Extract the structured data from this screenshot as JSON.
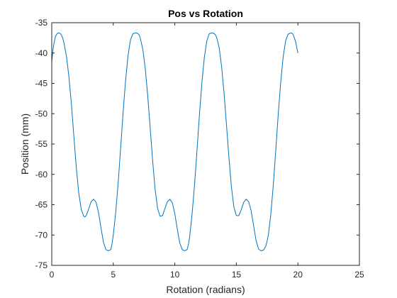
{
  "chart_data": {
    "type": "line",
    "title": "Pos vs Rotation",
    "xlabel": "Rotation (radians)",
    "ylabel": "Position (mm)",
    "xlim": [
      0,
      25
    ],
    "ylim": [
      -75,
      -35
    ],
    "xticks": [
      0,
      5,
      10,
      15,
      20,
      25
    ],
    "yticks": [
      -35,
      -40,
      -45,
      -50,
      -55,
      -60,
      -65,
      -70,
      -75
    ],
    "grid": false,
    "box": true,
    "line_color": "#0072BD",
    "axis_color": "#262626",
    "series": [
      {
        "x": [
          0,
          0.1,
          0.2,
          0.3,
          0.4,
          0.5,
          0.6,
          0.7,
          0.8,
          0.9,
          1.0,
          1.2,
          1.4,
          1.6,
          1.8,
          2.0,
          2.2,
          2.4,
          2.6,
          2.7,
          2.8,
          3.0,
          3.2,
          3.4,
          3.6,
          3.8,
          4.0,
          4.2,
          4.4,
          4.6,
          4.8,
          4.9,
          5.0,
          5.2,
          5.4,
          5.6,
          5.8,
          6.0,
          6.2,
          6.4,
          6.6,
          6.8,
          6.9,
          7.0,
          7.1,
          7.2,
          7.4,
          7.6,
          7.8,
          8.0,
          8.2,
          8.4,
          8.6,
          8.8,
          9.0,
          9.2,
          9.4,
          9.6,
          9.8,
          10.0,
          10.2,
          10.4,
          10.6,
          10.8,
          11.0,
          11.1,
          11.2,
          11.4,
          11.6,
          11.8,
          12.0,
          12.2,
          12.4,
          12.6,
          12.8,
          13.0,
          13.1,
          13.2,
          13.3,
          13.4,
          13.6,
          13.8,
          14.0,
          14.2,
          14.4,
          14.6,
          14.8,
          15.0,
          15.2,
          15.4,
          15.6,
          15.8,
          16.0,
          16.2,
          16.4,
          16.6,
          16.8,
          17.0,
          17.2,
          17.4,
          17.5,
          17.6,
          17.8,
          18.0,
          18.2,
          18.4,
          18.6,
          18.8,
          19.0,
          19.2,
          19.4,
          19.5,
          19.6,
          19.8,
          20.0
        ],
        "y": [
          -41.5,
          -39.5,
          -38.2,
          -37.3,
          -36.9,
          -36.7,
          -36.7,
          -36.8,
          -37.1,
          -37.6,
          -38.4,
          -40.6,
          -44.0,
          -48.5,
          -53.8,
          -59.0,
          -63.2,
          -65.8,
          -66.9,
          -67.0,
          -66.8,
          -65.7,
          -64.5,
          -64.1,
          -64.6,
          -66.3,
          -68.8,
          -71.2,
          -72.4,
          -72.6,
          -72.4,
          -71.4,
          -70.0,
          -66.2,
          -61.3,
          -55.6,
          -49.7,
          -44.5,
          -40.4,
          -37.8,
          -36.8,
          -36.7,
          -36.7,
          -36.8,
          -37.0,
          -37.6,
          -39.4,
          -42.6,
          -47.1,
          -52.4,
          -57.8,
          -62.5,
          -65.6,
          -66.9,
          -66.8,
          -65.6,
          -64.5,
          -64.1,
          -64.7,
          -66.5,
          -69.0,
          -71.3,
          -72.4,
          -72.6,
          -72.4,
          -71.6,
          -70.4,
          -66.6,
          -61.8,
          -56.1,
          -50.2,
          -44.9,
          -40.7,
          -38.0,
          -36.8,
          -36.7,
          -36.7,
          -36.8,
          -37.0,
          -37.4,
          -39.1,
          -42.2,
          -46.6,
          -51.9,
          -57.3,
          -62.1,
          -65.4,
          -66.8,
          -66.8,
          -65.8,
          -64.6,
          -64.1,
          -64.5,
          -66.0,
          -68.4,
          -70.9,
          -72.3,
          -72.6,
          -72.5,
          -71.8,
          -71.0,
          -70.0,
          -66.6,
          -61.8,
          -56.1,
          -50.2,
          -44.9,
          -40.7,
          -38.0,
          -36.9,
          -36.7,
          -36.7,
          -36.9,
          -38.0,
          -40.0
        ]
      }
    ]
  }
}
